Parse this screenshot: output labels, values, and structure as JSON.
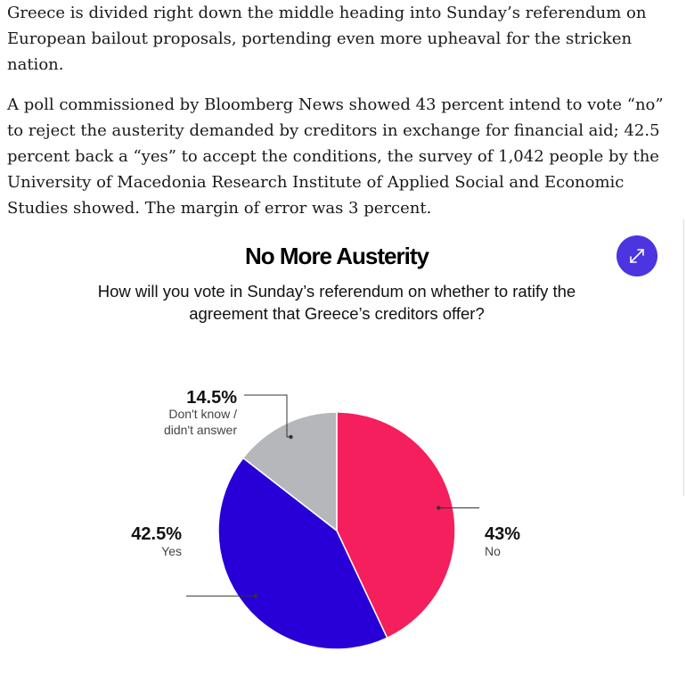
{
  "article": {
    "paragraphs": [
      "Greece is divided right down the middle heading into Sunday’s referendum on European bailout proposals, portending even more upheaval for the stricken nation.",
      "A poll commissioned by Bloomberg News showed 43 percent intend to vote “no” to reject the austerity demanded by creditors in exchange for financial aid; 42.5 percent back a “yes” to accept the conditions, the survey of 1,042 people by the University of Macedonia Research Institute of Applied Social and Economic Studies showed. The margin of error was 3 percent."
    ]
  },
  "expand_icon": "expand-arrows-icon",
  "chart_data": {
    "type": "pie",
    "title": "No More Austerity",
    "subtitle": "How will you vote in Sunday’s referendum on whether to ratify the agreement that Greece’s creditors offer?",
    "slices": [
      {
        "label": "No",
        "value": 43,
        "value_label": "43%",
        "color": "#f41f5c"
      },
      {
        "label": "Yes",
        "value": 42.5,
        "value_label": "42.5%",
        "color": "#2800d7"
      },
      {
        "label": "Don't know / didn't answer",
        "value": 14.5,
        "value_label": "14.5%",
        "color": "#b5b7bb"
      }
    ]
  }
}
